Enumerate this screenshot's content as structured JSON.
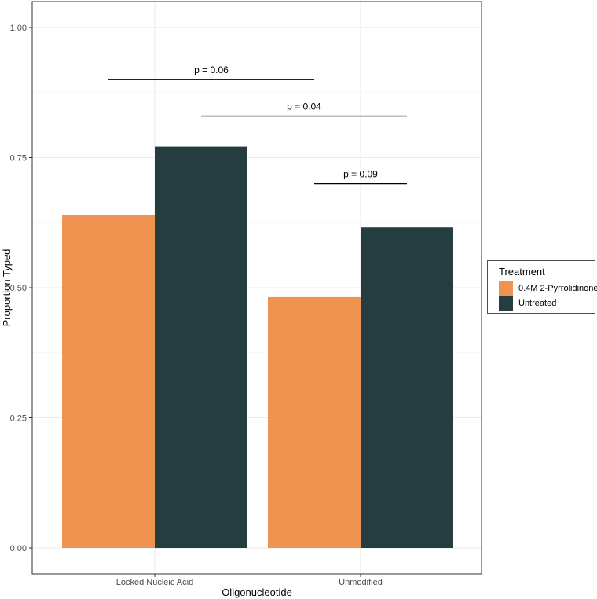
{
  "chart_data": {
    "type": "bar",
    "xlabel": "Oligonucleotide",
    "ylabel": "Proportion Typed",
    "categories": [
      "Locked Nucleic Acid",
      "Unmodified"
    ],
    "series": [
      {
        "name": "0.4M 2-Pyrrolidinone",
        "values": [
          0.64,
          0.482
        ],
        "color": "#EF9450"
      },
      {
        "name": "Untreated",
        "values": [
          0.771,
          0.616
        ],
        "color": "#253D3E"
      }
    ],
    "ylim": [
      0,
      1
    ],
    "yticks": [
      0.0,
      0.25,
      0.5,
      0.75,
      1.0
    ],
    "ytick_labels": [
      "0.00",
      "0.25",
      "0.50",
      "0.75",
      "1.00"
    ],
    "grid": true,
    "legend": {
      "title": "Treatment",
      "position": "right"
    },
    "annotations": [
      {
        "label": "p = 0.06",
        "from": "Locked Nucleic Acid / 0.4M 2-Pyrrolidinone",
        "to": "Unmodified / 0.4M 2-Pyrrolidinone",
        "y": 0.9
      },
      {
        "label": "p = 0.04",
        "from": "Locked Nucleic Acid / Untreated",
        "to": "Unmodified / Untreated",
        "y": 0.83
      },
      {
        "label": "p = 0.09",
        "from": "Unmodified / 0.4M 2-Pyrrolidinone",
        "to": "Unmodified / Untreated",
        "y": 0.7
      }
    ]
  }
}
